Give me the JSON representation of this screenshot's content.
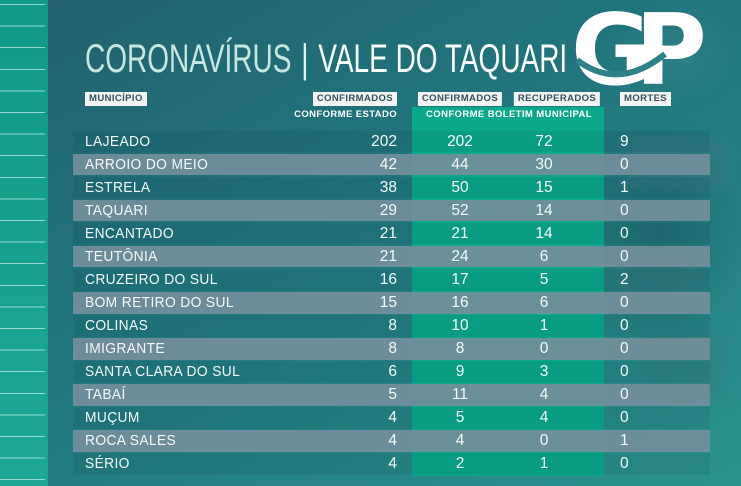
{
  "header": {
    "title_primary": "CORONAVÍRUS",
    "title_separator": "|",
    "title_secondary": "VALE DO TAQUARI",
    "logo_text": "GP"
  },
  "table": {
    "header": {
      "municipio": "MUNICÍPIO",
      "confirmados_estado": "CONFIRMADOS",
      "confirmados_estado_sub": "CONFORME ESTADO",
      "confirmados_municipal": "CONFIRMADOS",
      "recuperados": "RECUPERADOS",
      "mortes": "MORTES",
      "municipal_band_sub": "CONFORME BOLETIM MUNICIPAL"
    }
  },
  "colors": {
    "background_teal_dark": "#23606c",
    "background_teal_light": "#2b948c",
    "left_strip_green": "#14a08d",
    "column_band_green": "#0ba88c",
    "row_stripe_gray": "#728e9b",
    "chip_background": "#f2f3f2",
    "chip_text": "#32525e",
    "text_white": "#f3f9f8",
    "title_mint": "#c6e6e1"
  },
  "chart_data": {
    "type": "table",
    "title": "CORONAVÍRUS | VALE DO TAQUARI",
    "columns": [
      "MUNICÍPIO",
      "CONFIRMADOS CONFORME ESTADO",
      "CONFIRMADOS CONFORME BOLETIM MUNICIPAL",
      "RECUPERADOS",
      "MORTES"
    ],
    "rows": [
      [
        "LAJEADO",
        202,
        202,
        72,
        9
      ],
      [
        "ARROIO DO MEIO",
        42,
        44,
        30,
        0
      ],
      [
        "ESTRELA",
        38,
        50,
        15,
        1
      ],
      [
        "TAQUARI",
        29,
        52,
        14,
        0
      ],
      [
        "ENCANTADO",
        21,
        21,
        14,
        0
      ],
      [
        "TEUTÔNIA",
        21,
        24,
        6,
        0
      ],
      [
        "CRUZEIRO DO SUL",
        16,
        17,
        5,
        2
      ],
      [
        "BOM RETIRO DO SUL",
        15,
        16,
        6,
        0
      ],
      [
        "COLINAS",
        8,
        10,
        1,
        0
      ],
      [
        "IMIGRANTE",
        8,
        8,
        0,
        0
      ],
      [
        "SANTA CLARA DO SUL",
        6,
        9,
        3,
        0
      ],
      [
        "TABAÍ",
        5,
        11,
        4,
        0
      ],
      [
        "MUÇUM",
        4,
        5,
        4,
        0
      ],
      [
        "ROCA SALES",
        4,
        4,
        0,
        1
      ],
      [
        "SÉRIO",
        4,
        2,
        1,
        0
      ]
    ]
  }
}
